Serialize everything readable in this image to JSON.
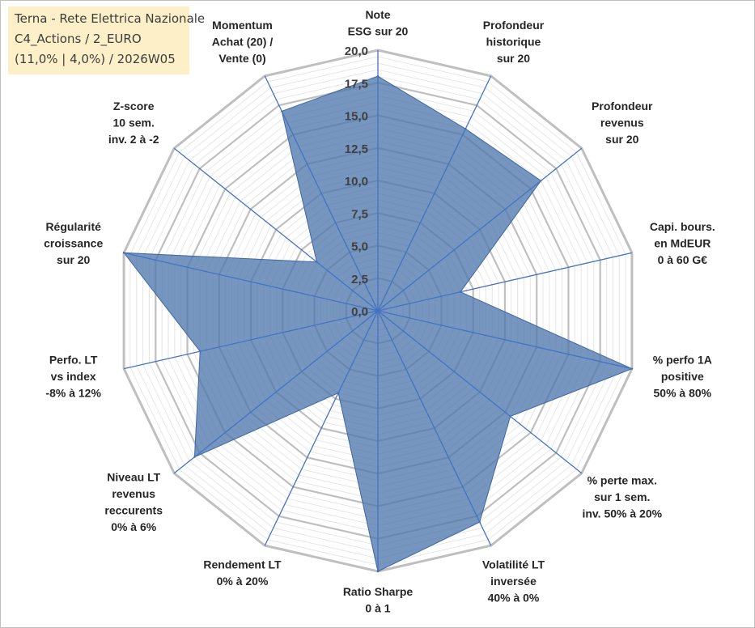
{
  "header": {
    "line1": "Terna - Rete Elettrica Nazionale",
    "line2": "C4_Actions / 2_EURO",
    "line3": "(11,0% | 4,0%) / 2026W05"
  },
  "colors": {
    "fill": "#4f79ad",
    "axis": "#4472c4",
    "grid": "#bfbfbf",
    "info_bg": "#fdf0c8"
  },
  "chart_data": {
    "type": "radar",
    "title": "",
    "rmin": 0,
    "rmax": 20,
    "ticks": [
      "0,0",
      "2,5",
      "5,0",
      "7,5",
      "10,0",
      "12,5",
      "15,0",
      "17,5",
      "20,0"
    ],
    "axes": [
      {
        "label": [
          "Note",
          "ESG sur 20"
        ],
        "value": 18.0
      },
      {
        "label": [
          "Profondeur",
          "historique",
          "sur 20"
        ],
        "value": 15.5
      },
      {
        "label": [
          "Profondeur",
          "revenus",
          "sur 20"
        ],
        "value": 16.0
      },
      {
        "label": [
          "Capi. bours.",
          "en MdEUR",
          "0 à 60 G€"
        ],
        "value": 6.5
      },
      {
        "label": [
          "% perfo 1A",
          "positive",
          "50% à 80%"
        ],
        "value": 20.0
      },
      {
        "label": [
          "% perte max.",
          "sur 1 sem.",
          "inv. 50% à 20%"
        ],
        "value": 13.0
      },
      {
        "label": [
          "Volatilité LT",
          "inversée",
          "40% à 0%"
        ],
        "value": 18.0
      },
      {
        "label": [
          "Ratio Sharpe",
          "0 à 1"
        ],
        "value": 20.0
      },
      {
        "label": [
          "Rendement LT",
          "0% à 20%"
        ],
        "value": 7.0
      },
      {
        "label": [
          "Niveau LT",
          "revenus",
          "reccurents",
          "0% à 6%"
        ],
        "value": 18.0
      },
      {
        "label": [
          "Perfo. LT",
          "vs index",
          "-8% à 12%"
        ],
        "value": 14.0
      },
      {
        "label": [
          "Régularité",
          "croissance",
          "sur 20"
        ],
        "value": 20.0
      },
      {
        "label": [
          "Z-score",
          "10 sem.",
          "inv. 2 à -2"
        ],
        "value": 6.0
      },
      {
        "label": [
          "Momentum",
          "Achat (20) /",
          "Vente (0)"
        ],
        "value": 17.0
      }
    ]
  }
}
